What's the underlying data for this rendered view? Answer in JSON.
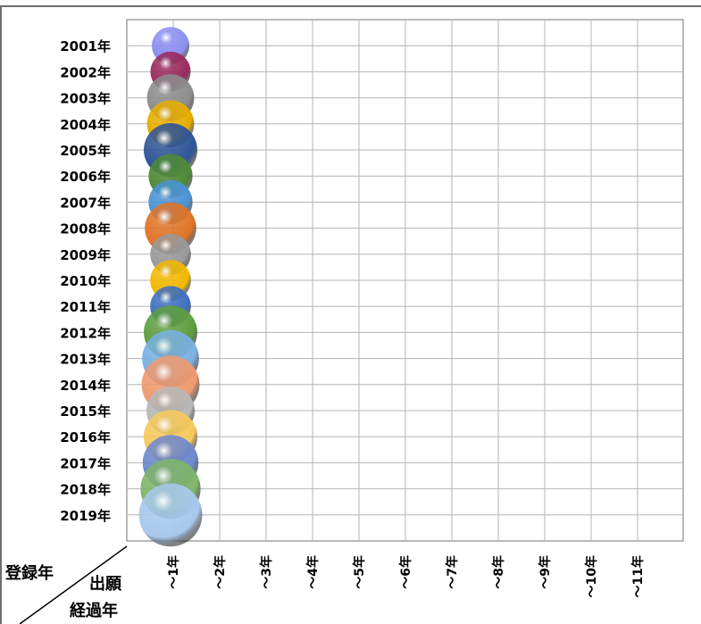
{
  "chart_data": {
    "type": "scatter",
    "title": "",
    "corner_label": {
      "row_axis": "登録年",
      "col_axis_line1": "出願",
      "col_axis_line2": "経過年"
    },
    "categories_y": [
      "2001年",
      "2002年",
      "2003年",
      "2004年",
      "2005年",
      "2006年",
      "2007年",
      "2008年",
      "2009年",
      "2010年",
      "2011年",
      "2012年",
      "2013年",
      "2014年",
      "2015年",
      "2016年",
      "2017年",
      "2018年",
      "2019年"
    ],
    "categories_x": [
      "～1年",
      "～2年",
      "～3年",
      "～4年",
      "～5年",
      "～6年",
      "～7年",
      "～8年",
      "～9年",
      "～10年",
      "～11年"
    ],
    "points": [
      {
        "x": "～1年",
        "y": "2001年",
        "size": 0.7,
        "color": "#8b8ff0"
      },
      {
        "x": "～1年",
        "y": "2002年",
        "size": 0.75,
        "color": "#9a2a5e"
      },
      {
        "x": "～1年",
        "y": "2003年",
        "size": 0.88,
        "color": "#8c8c8c"
      },
      {
        "x": "～1年",
        "y": "2004年",
        "size": 0.88,
        "color": "#e6ad00"
      },
      {
        "x": "～1年",
        "y": "2005年",
        "size": 1.0,
        "color": "#2e5596"
      },
      {
        "x": "～1年",
        "y": "2006年",
        "size": 0.82,
        "color": "#4e8a36"
      },
      {
        "x": "～1年",
        "y": "2007年",
        "size": 0.82,
        "color": "#4a92d4"
      },
      {
        "x": "～1年",
        "y": "2008年",
        "size": 0.96,
        "color": "#e07428"
      },
      {
        "x": "～1年",
        "y": "2009年",
        "size": 0.76,
        "color": "#999999"
      },
      {
        "x": "～1年",
        "y": "2010年",
        "size": 0.76,
        "color": "#f2b800"
      },
      {
        "x": "～1年",
        "y": "2011年",
        "size": 0.76,
        "color": "#3f70c0"
      },
      {
        "x": "～1年",
        "y": "2012年",
        "size": 1.0,
        "color": "#5e9e3f"
      },
      {
        "x": "～1年",
        "y": "2013年",
        "size": 1.06,
        "color": "#7ab0e0"
      },
      {
        "x": "～1年",
        "y": "2014年",
        "size": 1.08,
        "color": "#ee9a70"
      },
      {
        "x": "～1年",
        "y": "2015年",
        "size": 0.9,
        "color": "#b8b8b8"
      },
      {
        "x": "～1年",
        "y": "2016年",
        "size": 1.0,
        "color": "#f5c95a"
      },
      {
        "x": "～1年",
        "y": "2017年",
        "size": 1.04,
        "color": "#6f89cc"
      },
      {
        "x": "～1年",
        "y": "2018年",
        "size": 1.12,
        "color": "#7fb56a"
      },
      {
        "x": "～1年",
        "y": "2019年",
        "size": 1.18,
        "color": "#a8c8ec"
      }
    ],
    "grid": true,
    "legend": "none"
  }
}
